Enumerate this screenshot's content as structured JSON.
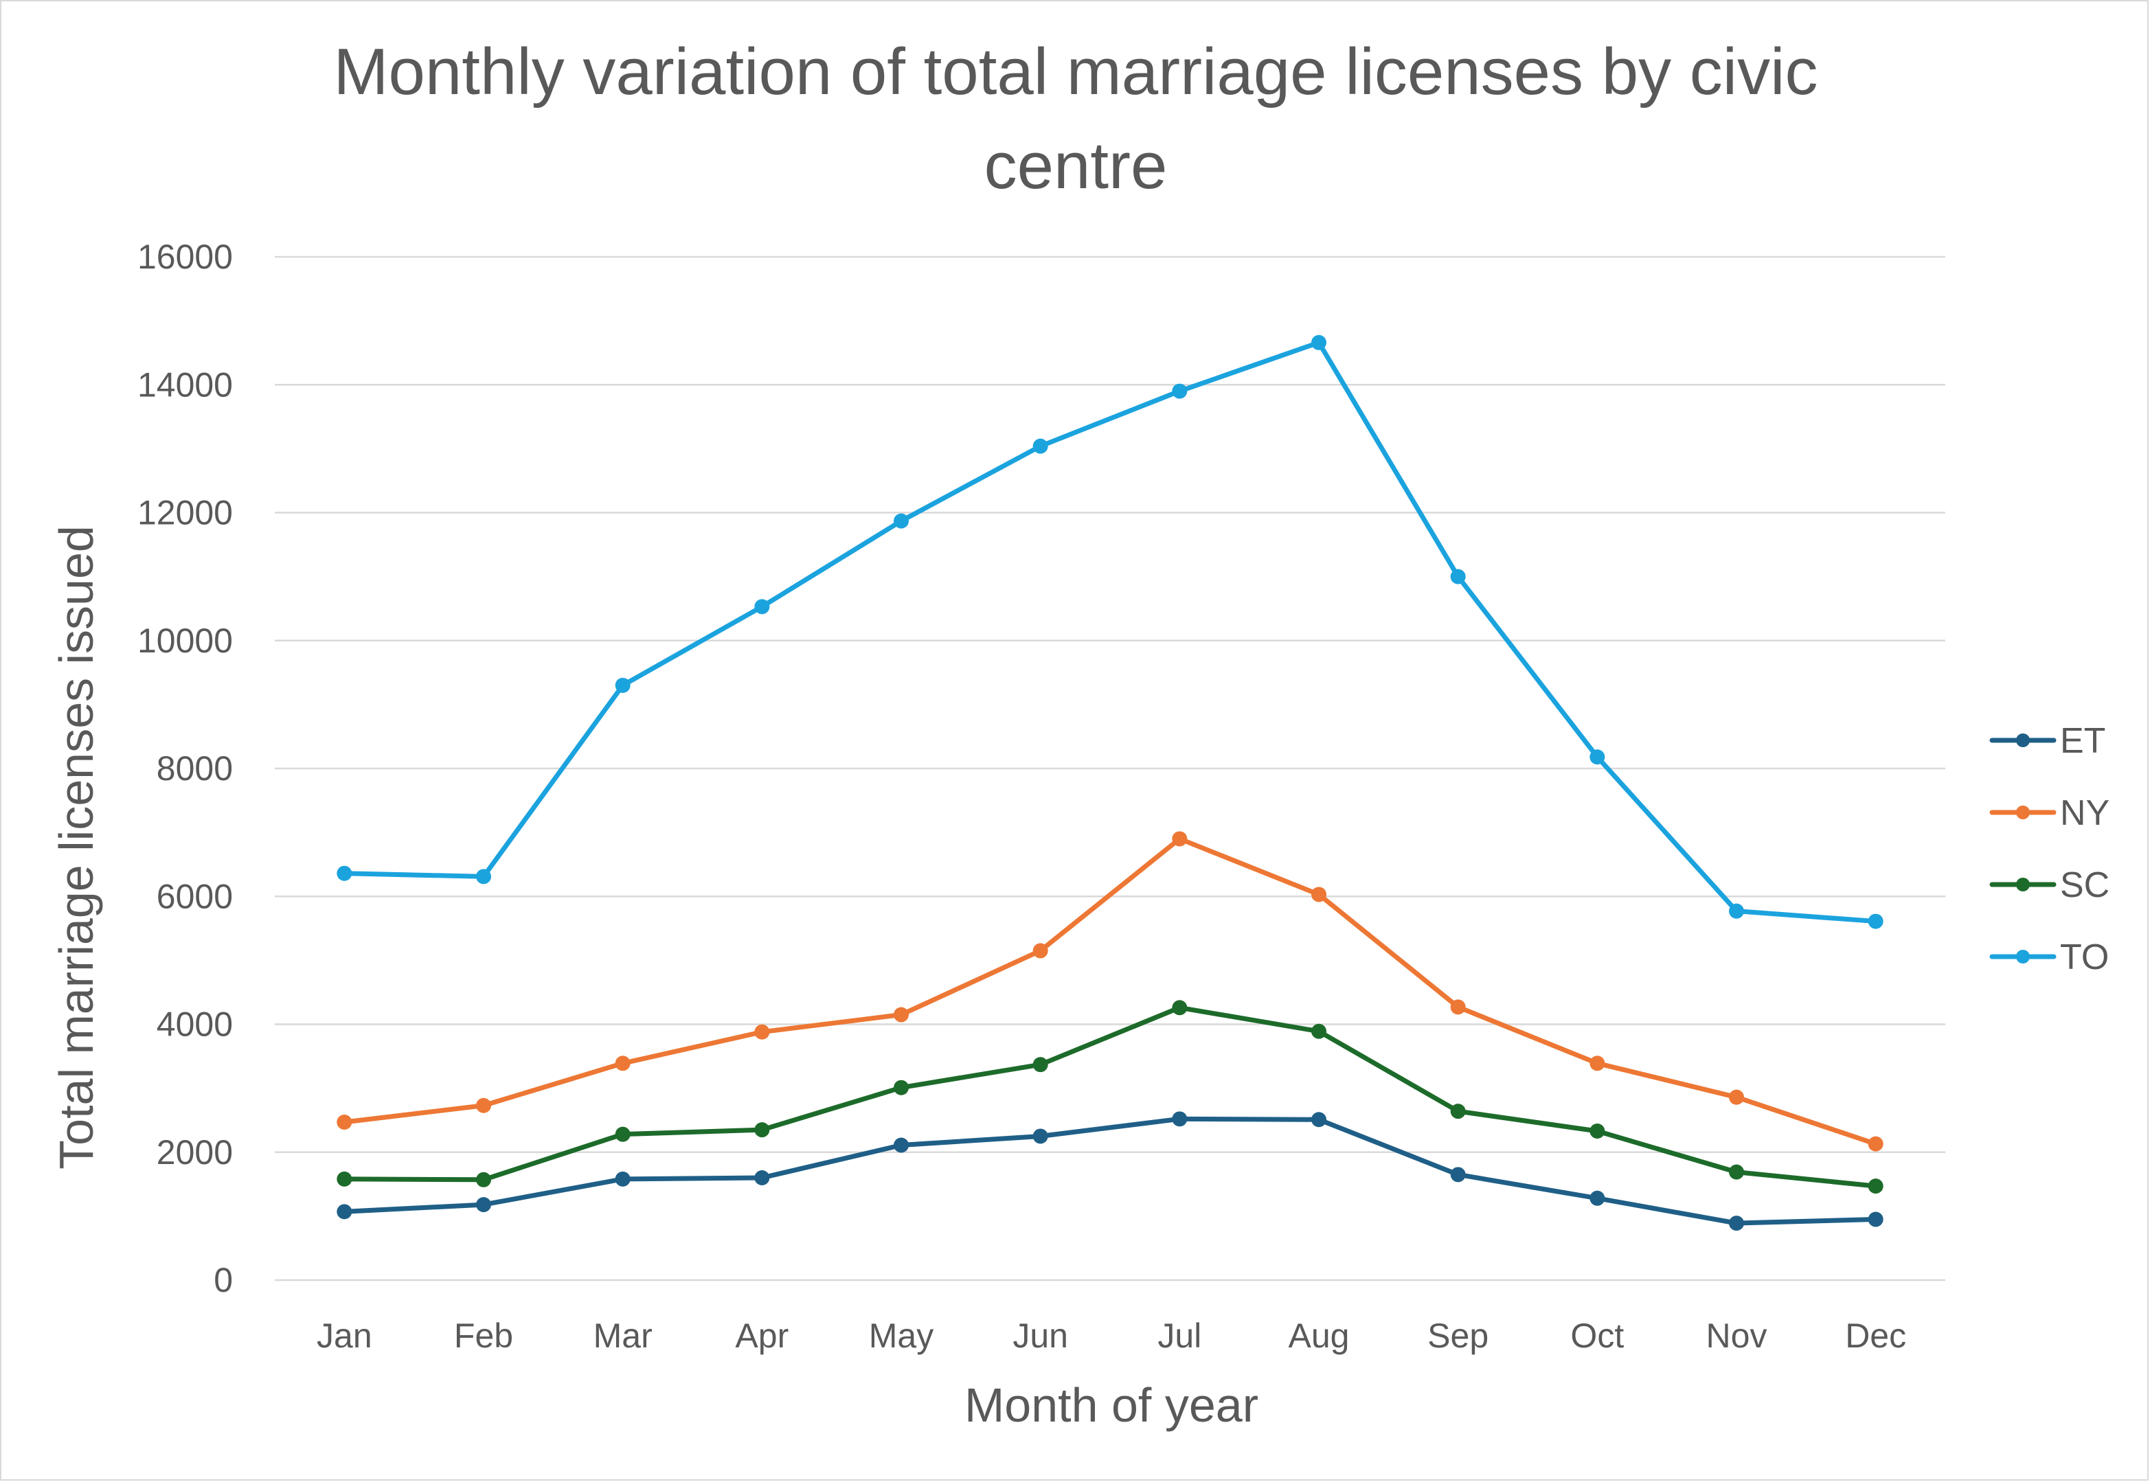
{
  "chart_data": {
    "type": "line",
    "title_lines": [
      "Monthly variation of total marriage licenses by civic",
      "centre"
    ],
    "xlabel": "Month of year",
    "ylabel": "Total marriage licenses issued",
    "ylim": [
      0,
      16000
    ],
    "yticks": [
      "0",
      "2000",
      "4000",
      "6000",
      "8000",
      "10000",
      "12000",
      "14000",
      "16000"
    ],
    "categories": [
      "Jan",
      "Feb",
      "Mar",
      "Apr",
      "May",
      "Jun",
      "Jul",
      "Aug",
      "Sep",
      "Oct",
      "Nov",
      "Dec"
    ],
    "grid": true,
    "legend_position": "right",
    "series": [
      {
        "name": "ET",
        "color": "#1f5f87",
        "values": [
          1070,
          1180,
          1580,
          1600,
          2110,
          2250,
          2520,
          2510,
          1650,
          1280,
          890,
          950
        ]
      },
      {
        "name": "NY",
        "color": "#ed7734",
        "values": [
          2470,
          2730,
          3390,
          3880,
          4150,
          5150,
          6900,
          6030,
          4270,
          3390,
          2860,
          2130
        ]
      },
      {
        "name": "SC",
        "color": "#1d6b2a",
        "values": [
          1580,
          1570,
          2280,
          2350,
          3010,
          3370,
          4260,
          3890,
          2640,
          2330,
          1690,
          1470
        ]
      },
      {
        "name": "TO",
        "color": "#1ba3de",
        "values": [
          6360,
          6310,
          9300,
          10530,
          11870,
          13040,
          13900,
          14660,
          11000,
          8180,
          5770,
          5610
        ]
      }
    ]
  }
}
